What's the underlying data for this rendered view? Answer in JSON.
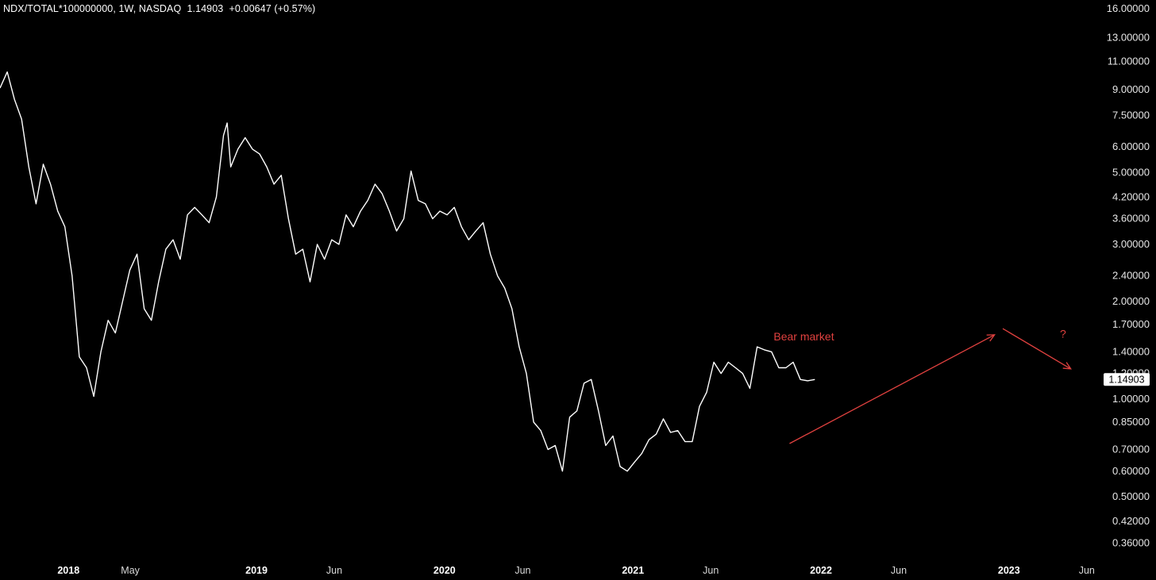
{
  "header": {
    "symbol": "NDX/TOTAL*100000000",
    "interval": "1W",
    "exchange": "NASDAQ",
    "last": "1.14903",
    "change": "+0.00647",
    "change_pct": "(+0.57%)"
  },
  "colors": {
    "background": "#000000",
    "line": "#ffffff",
    "annotation": "#e0413f",
    "price_label_bg": "#ffffff",
    "price_label_text": "#000000"
  },
  "chart_data": {
    "type": "line",
    "y_scale": "log",
    "ylim": [
      0.33,
      17.0
    ],
    "y_ticks": [
      {
        "label": "16.00000",
        "value": 16.0
      },
      {
        "label": "13.00000",
        "value": 13.0
      },
      {
        "label": "11.00000",
        "value": 11.0
      },
      {
        "label": "9.00000",
        "value": 9.0
      },
      {
        "label": "7.50000",
        "value": 7.5
      },
      {
        "label": "6.00000",
        "value": 6.0
      },
      {
        "label": "5.00000",
        "value": 5.0
      },
      {
        "label": "4.20000",
        "value": 4.2
      },
      {
        "label": "3.60000",
        "value": 3.6
      },
      {
        "label": "3.00000",
        "value": 3.0
      },
      {
        "label": "2.40000",
        "value": 2.4
      },
      {
        "label": "2.00000",
        "value": 2.0
      },
      {
        "label": "1.70000",
        "value": 1.7
      },
      {
        "label": "1.40000",
        "value": 1.4
      },
      {
        "label": "1.20000",
        "value": 1.2
      },
      {
        "label": "1.00000",
        "value": 1.0
      },
      {
        "label": "0.85000",
        "value": 0.85
      },
      {
        "label": "0.70000",
        "value": 0.7
      },
      {
        "label": "0.60000",
        "value": 0.6
      },
      {
        "label": "0.50000",
        "value": 0.5
      },
      {
        "label": "0.42000",
        "value": 0.42
      },
      {
        "label": "0.36000",
        "value": 0.36
      }
    ],
    "xlim": [
      "2017-08-21",
      "2023-06-26"
    ],
    "x_ticks": [
      {
        "label": "2018",
        "date": "2018-01-01",
        "major": true
      },
      {
        "label": "May",
        "date": "2018-05-01",
        "major": false
      },
      {
        "label": "2019",
        "date": "2019-01-01",
        "major": true
      },
      {
        "label": "Jun",
        "date": "2019-06-01",
        "major": false
      },
      {
        "label": "2020",
        "date": "2020-01-01",
        "major": true
      },
      {
        "label": "Jun",
        "date": "2020-06-01",
        "major": false
      },
      {
        "label": "2021",
        "date": "2021-01-01",
        "major": true
      },
      {
        "label": "Jun",
        "date": "2021-06-01",
        "major": false
      },
      {
        "label": "2022",
        "date": "2022-01-01",
        "major": true
      },
      {
        "label": "Jun",
        "date": "2022-06-01",
        "major": false
      },
      {
        "label": "2023",
        "date": "2023-01-01",
        "major": true
      },
      {
        "label": "Jun",
        "date": "2023-06-01",
        "major": false
      }
    ],
    "series": [
      {
        "points": [
          [
            "2017-08-21",
            9.1
          ],
          [
            "2017-09-04",
            10.2
          ],
          [
            "2017-09-18",
            8.4
          ],
          [
            "2017-10-02",
            7.3
          ],
          [
            "2017-10-16",
            5.2
          ],
          [
            "2017-10-30",
            4.0
          ],
          [
            "2017-11-13",
            5.3
          ],
          [
            "2017-11-27",
            4.6
          ],
          [
            "2017-12-11",
            3.8
          ],
          [
            "2017-12-25",
            3.4
          ],
          [
            "2018-01-08",
            2.4
          ],
          [
            "2018-01-22",
            1.35
          ],
          [
            "2018-02-05",
            1.25
          ],
          [
            "2018-02-19",
            1.02
          ],
          [
            "2018-03-05",
            1.4
          ],
          [
            "2018-03-19",
            1.75
          ],
          [
            "2018-04-02",
            1.6
          ],
          [
            "2018-04-16",
            2.0
          ],
          [
            "2018-04-30",
            2.5
          ],
          [
            "2018-05-14",
            2.8
          ],
          [
            "2018-05-28",
            1.9
          ],
          [
            "2018-06-11",
            1.75
          ],
          [
            "2018-06-25",
            2.3
          ],
          [
            "2018-07-09",
            2.9
          ],
          [
            "2018-07-23",
            3.1
          ],
          [
            "2018-08-06",
            2.7
          ],
          [
            "2018-08-20",
            3.7
          ],
          [
            "2018-09-03",
            3.9
          ],
          [
            "2018-09-17",
            3.7
          ],
          [
            "2018-10-01",
            3.5
          ],
          [
            "2018-10-15",
            4.2
          ],
          [
            "2018-10-29",
            6.5
          ],
          [
            "2018-11-05",
            7.1
          ],
          [
            "2018-11-12",
            5.2
          ],
          [
            "2018-11-26",
            5.9
          ],
          [
            "2018-12-10",
            6.4
          ],
          [
            "2018-12-24",
            5.9
          ],
          [
            "2019-01-07",
            5.7
          ],
          [
            "2019-01-21",
            5.2
          ],
          [
            "2019-02-04",
            4.6
          ],
          [
            "2019-02-18",
            4.9
          ],
          [
            "2019-03-04",
            3.6
          ],
          [
            "2019-03-18",
            2.8
          ],
          [
            "2019-04-01",
            2.9
          ],
          [
            "2019-04-15",
            2.3
          ],
          [
            "2019-04-29",
            3.0
          ],
          [
            "2019-05-13",
            2.7
          ],
          [
            "2019-05-27",
            3.1
          ],
          [
            "2019-06-10",
            3.0
          ],
          [
            "2019-06-24",
            3.7
          ],
          [
            "2019-07-08",
            3.4
          ],
          [
            "2019-07-22",
            3.8
          ],
          [
            "2019-08-05",
            4.1
          ],
          [
            "2019-08-19",
            4.6
          ],
          [
            "2019-09-02",
            4.3
          ],
          [
            "2019-09-16",
            3.8
          ],
          [
            "2019-09-30",
            3.3
          ],
          [
            "2019-10-14",
            3.6
          ],
          [
            "2019-10-28",
            5.05
          ],
          [
            "2019-11-11",
            4.1
          ],
          [
            "2019-11-25",
            4.0
          ],
          [
            "2019-12-09",
            3.6
          ],
          [
            "2019-12-23",
            3.8
          ],
          [
            "2020-01-06",
            3.7
          ],
          [
            "2020-01-20",
            3.9
          ],
          [
            "2020-02-03",
            3.4
          ],
          [
            "2020-02-17",
            3.1
          ],
          [
            "2020-03-02",
            3.3
          ],
          [
            "2020-03-16",
            3.5
          ],
          [
            "2020-03-30",
            2.8
          ],
          [
            "2020-04-13",
            2.4
          ],
          [
            "2020-04-27",
            2.2
          ],
          [
            "2020-05-11",
            1.9
          ],
          [
            "2020-05-25",
            1.45
          ],
          [
            "2020-06-08",
            1.2
          ],
          [
            "2020-06-22",
            0.85
          ],
          [
            "2020-07-06",
            0.8
          ],
          [
            "2020-07-20",
            0.7
          ],
          [
            "2020-08-03",
            0.72
          ],
          [
            "2020-08-17",
            0.6
          ],
          [
            "2020-08-31",
            0.88
          ],
          [
            "2020-09-14",
            0.92
          ],
          [
            "2020-09-28",
            1.12
          ],
          [
            "2020-10-12",
            1.15
          ],
          [
            "2020-10-26",
            0.92
          ],
          [
            "2020-11-09",
            0.72
          ],
          [
            "2020-11-23",
            0.77
          ],
          [
            "2020-12-07",
            0.62
          ],
          [
            "2020-12-21",
            0.6
          ],
          [
            "2021-01-04",
            0.64
          ],
          [
            "2021-01-18",
            0.68
          ],
          [
            "2021-02-01",
            0.75
          ],
          [
            "2021-02-15",
            0.78
          ],
          [
            "2021-03-01",
            0.87
          ],
          [
            "2021-03-15",
            0.79
          ],
          [
            "2021-03-29",
            0.8
          ],
          [
            "2021-04-12",
            0.74
          ],
          [
            "2021-04-26",
            0.74
          ],
          [
            "2021-05-10",
            0.95
          ],
          [
            "2021-05-24",
            1.05
          ],
          [
            "2021-06-07",
            1.3
          ],
          [
            "2021-06-21",
            1.2
          ],
          [
            "2021-07-05",
            1.3
          ],
          [
            "2021-07-19",
            1.25
          ],
          [
            "2021-08-02",
            1.2
          ],
          [
            "2021-08-16",
            1.08
          ],
          [
            "2021-08-30",
            1.45
          ],
          [
            "2021-09-13",
            1.42
          ],
          [
            "2021-09-27",
            1.4
          ],
          [
            "2021-10-11",
            1.25
          ],
          [
            "2021-10-25",
            1.25
          ],
          [
            "2021-11-08",
            1.3
          ],
          [
            "2021-11-22",
            1.15
          ],
          [
            "2021-12-06",
            1.14
          ],
          [
            "2021-12-20",
            1.15
          ]
        ]
      }
    ],
    "last_price_label": "1.14903",
    "annotations": [
      {
        "text": "Bear market",
        "x": "2021-10-01",
        "y": 1.52
      },
      {
        "text": "?",
        "x": "2023-04-10",
        "y": 1.55
      }
    ],
    "arrows": [
      {
        "from": [
          "2021-11-01",
          0.73
        ],
        "to": [
          "2022-12-04",
          1.58
        ]
      },
      {
        "from": [
          "2022-12-20",
          1.65
        ],
        "to": [
          "2023-05-01",
          1.24
        ]
      }
    ]
  }
}
